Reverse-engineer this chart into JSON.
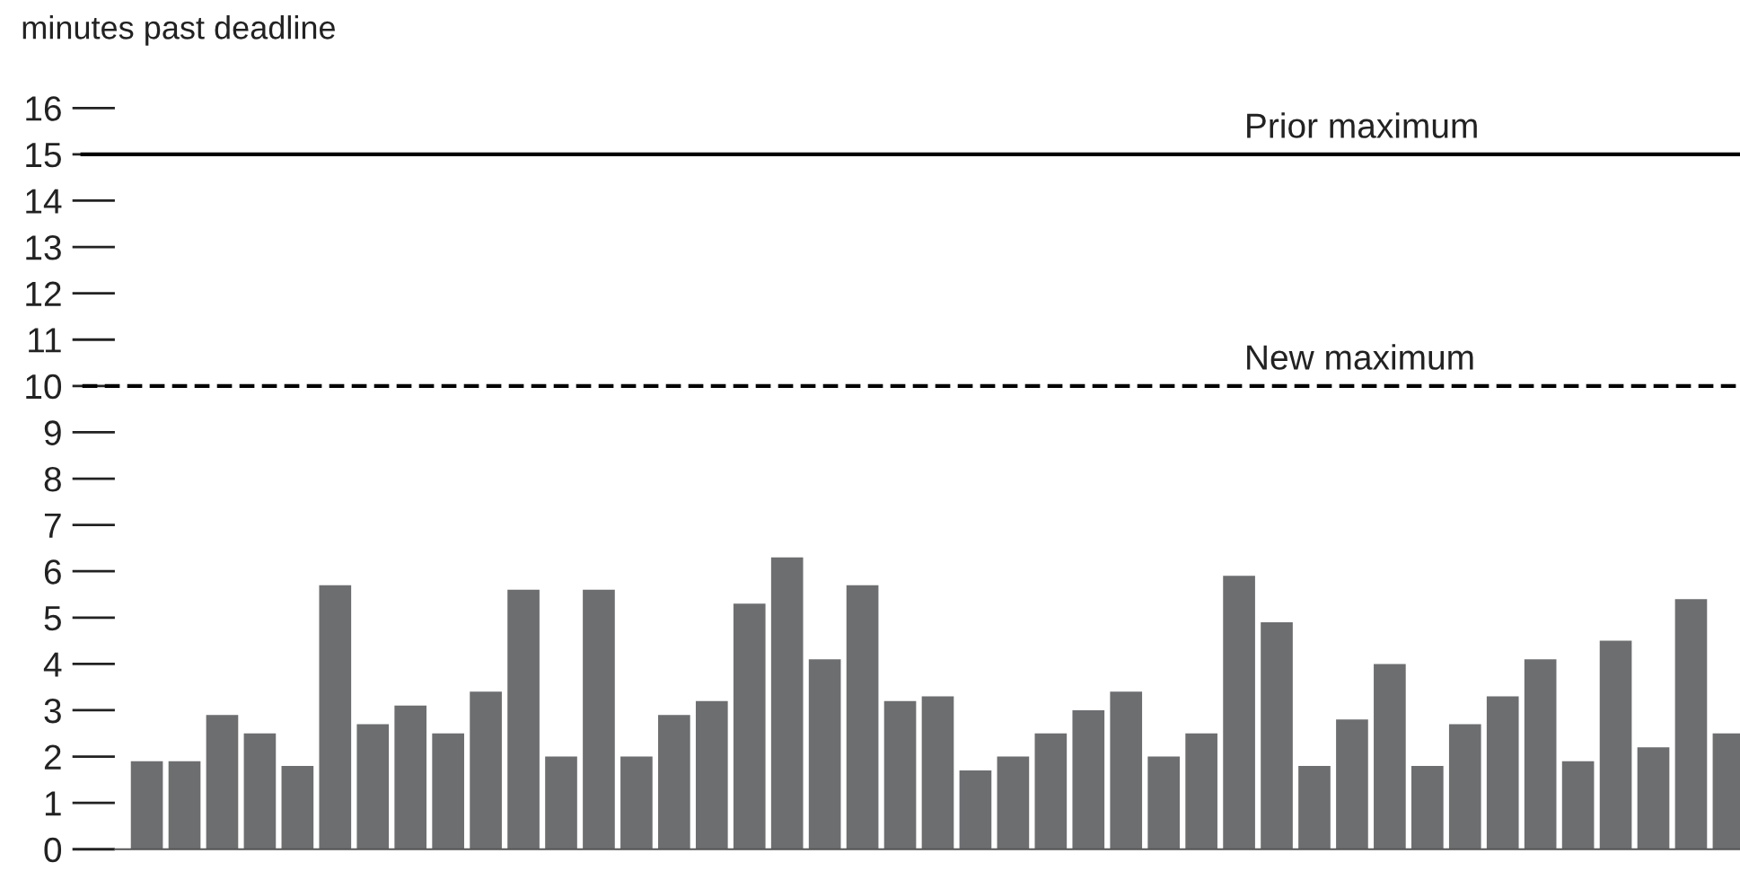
{
  "chart_data": {
    "type": "bar",
    "ylabel": "minutes past deadline",
    "categories": [
      null,
      null,
      null,
      null,
      null,
      null,
      null,
      null,
      null,
      null,
      null,
      null,
      null,
      null,
      null,
      null,
      null,
      null,
      null,
      null,
      null,
      null,
      null,
      null,
      null,
      null,
      null,
      null,
      null,
      null,
      null,
      null,
      null,
      null,
      null,
      null,
      null,
      null,
      null,
      null,
      null,
      null,
      null
    ],
    "series": [
      {
        "color": "#6d6e70",
        "values": [
          1.9,
          1.9,
          2.9,
          2.5,
          1.8,
          5.7,
          2.7,
          3.1,
          2.5,
          3.4,
          5.6,
          2.0,
          5.6,
          2.0,
          2.9,
          3.2,
          5.3,
          6.3,
          4.1,
          5.7,
          3.2,
          3.3,
          1.7,
          2.0,
          2.5,
          3.0,
          3.4,
          2.0,
          2.5,
          5.9,
          4.9,
          1.8,
          2.8,
          4.0,
          1.8,
          2.7,
          3.3,
          4.1,
          1.9,
          4.5,
          2.2,
          5.4,
          2.5
        ]
      }
    ],
    "ylim": [
      0,
      16
    ],
    "yticks": [
      0,
      1,
      2,
      3,
      4,
      5,
      6,
      7,
      8,
      9,
      10,
      11,
      12,
      13,
      14,
      15,
      16
    ],
    "ref_lines": [
      {
        "axis": "y",
        "value": 15,
        "label": "Prior maximum",
        "color": "#000000",
        "line_style": "solid"
      },
      {
        "axis": "y",
        "value": 10,
        "label": "New maximum",
        "color": "#000000",
        "line_style": "dashed"
      }
    ],
    "grid": false,
    "legend": false
  }
}
